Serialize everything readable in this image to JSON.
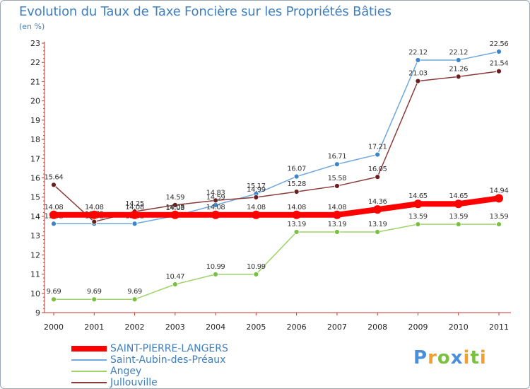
{
  "header": {
    "title": "Evolution du Taux de Taxe Foncière sur les Propriétés Bâties",
    "subtitle": "(en %)"
  },
  "logo": {
    "letters": [
      "P",
      "r",
      "o",
      "x",
      "i",
      "t",
      "i"
    ],
    "colors": [
      "#4a90d9",
      "#f0a030",
      "#7bc043",
      "#4a90d9",
      "#f0a030",
      "#7bc043",
      "#f0a030"
    ]
  },
  "chart_data": {
    "type": "line",
    "x": [
      "2000",
      "2001",
      "2002",
      "2003",
      "2004",
      "2005",
      "2006",
      "2007",
      "2008",
      "2009",
      "2010",
      "2011"
    ],
    "ylim": [
      9,
      23
    ],
    "yticks": [
      9,
      10,
      11,
      12,
      13,
      14,
      15,
      16,
      17,
      18,
      19,
      20,
      21,
      22,
      23
    ],
    "grid": false,
    "legend_position": "bottom-left",
    "series": [
      {
        "name": "SAINT-PIERRE-LANGERS",
        "color": "#ff0000",
        "values": [
          14.08,
          14.08,
          14.08,
          14.08,
          14.08,
          14.08,
          14.08,
          14.08,
          14.36,
          14.65,
          14.65,
          14.94
        ],
        "labels": [
          "14.08",
          "14.08",
          "14.08",
          "14.08",
          "14.08",
          "14.08",
          "14.08",
          "14.08",
          "14.36",
          "14.65",
          "14.65",
          "14.94"
        ]
      },
      {
        "name": "Saint-Aubin-des-Préaux",
        "color": "#6fa8dc",
        "marker": "#3d85c6",
        "values": [
          13.62,
          13.62,
          13.62,
          14.03,
          14.59,
          15.17,
          16.07,
          16.71,
          17.21,
          22.12,
          22.12,
          22.56
        ],
        "labels": [
          "13.62",
          "13.62",
          "13.62",
          "14.03",
          "14.59",
          "15.17",
          "16.07",
          "16.71",
          "17.21",
          "22.12",
          "22.12",
          "22.56"
        ]
      },
      {
        "name": "Angey",
        "color": "#9ed36a",
        "marker": "#7bc043",
        "values": [
          9.69,
          9.69,
          9.69,
          10.47,
          10.99,
          10.99,
          13.19,
          13.19,
          13.19,
          13.59,
          13.59,
          13.59
        ],
        "labels": [
          "9.69",
          "9.69",
          "9.69",
          "10.47",
          "10.99",
          "10.99",
          "13.19",
          "13.19",
          "13.19",
          "13.59",
          "13.59",
          "13.59"
        ]
      },
      {
        "name": "Jullouville",
        "color": "#8b3a3a",
        "marker": "#6b1f1f",
        "values": [
          15.64,
          13.72,
          14.25,
          14.59,
          14.83,
          14.99,
          15.28,
          15.58,
          16.05,
          21.03,
          21.26,
          21.54
        ],
        "labels": [
          "15.64",
          "13.72",
          "14.25",
          "14.59",
          "14.83",
          "14.99",
          "15.28",
          "15.58",
          "16.05",
          "21.03",
          "21.26",
          "21.54"
        ]
      }
    ]
  }
}
